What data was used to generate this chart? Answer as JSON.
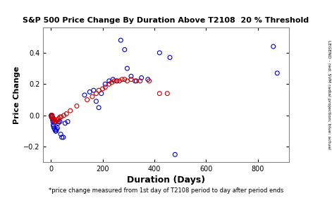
{
  "title": "S&P 500 Price Change By Duration Above T2108  20 % Threshold",
  "xlabel": "Duration (Days)",
  "ylabel": "Price Change",
  "footnote": "*price change measured from 1st day of T2108 period to day after period ends",
  "legend_text": "LEGEND - red: SVM radial projection; blue: actual",
  "xlim": [
    -30,
    920
  ],
  "ylim": [
    -0.3,
    0.56
  ],
  "xticks": [
    0,
    200,
    400,
    600,
    800
  ],
  "yticks": [
    -0.2,
    0.0,
    0.2,
    0.4
  ],
  "blue_x": [
    1,
    2,
    3,
    4,
    5,
    6,
    7,
    8,
    9,
    10,
    12,
    15,
    18,
    20,
    22,
    25,
    28,
    30,
    35,
    38,
    42,
    48,
    55,
    65,
    130,
    150,
    165,
    175,
    185,
    195,
    210,
    225,
    240,
    255,
    270,
    285,
    295,
    310,
    330,
    350,
    375,
    420,
    460,
    480,
    860,
    875
  ],
  "blue_y": [
    0.0,
    -0.01,
    0.0,
    0.0,
    -0.01,
    -0.02,
    -0.03,
    -0.04,
    -0.06,
    -0.07,
    -0.08,
    -0.09,
    -0.1,
    -0.1,
    -0.09,
    -0.08,
    -0.05,
    -0.04,
    -0.04,
    -0.12,
    -0.14,
    -0.14,
    -0.05,
    -0.04,
    0.13,
    0.15,
    0.16,
    0.09,
    0.05,
    0.14,
    0.2,
    0.22,
    0.23,
    0.22,
    0.48,
    0.42,
    0.3,
    0.25,
    0.22,
    0.24,
    0.23,
    0.4,
    0.37,
    -0.25,
    0.44,
    0.27
  ],
  "red_x": [
    2,
    3,
    4,
    5,
    6,
    8,
    10,
    12,
    15,
    18,
    20,
    25,
    30,
    35,
    40,
    50,
    60,
    75,
    100,
    140,
    160,
    175,
    185,
    200,
    210,
    225,
    235,
    245,
    255,
    265,
    275,
    285,
    295,
    310,
    325,
    345,
    380,
    420,
    450
  ],
  "red_y": [
    -0.01,
    0.0,
    0.0,
    -0.01,
    -0.01,
    -0.02,
    -0.02,
    -0.03,
    -0.04,
    -0.04,
    -0.04,
    -0.03,
    -0.02,
    -0.01,
    -0.01,
    0.0,
    0.01,
    0.03,
    0.06,
    0.1,
    0.12,
    0.14,
    0.16,
    0.17,
    0.18,
    0.2,
    0.21,
    0.22,
    0.22,
    0.22,
    0.23,
    0.23,
    0.22,
    0.23,
    0.22,
    0.22,
    0.22,
    0.14,
    0.14
  ],
  "background_color": "#ffffff",
  "blue_color": "#0000cc",
  "red_color": "#cc0000",
  "marker_size": 18,
  "marker_lw": 0.8
}
